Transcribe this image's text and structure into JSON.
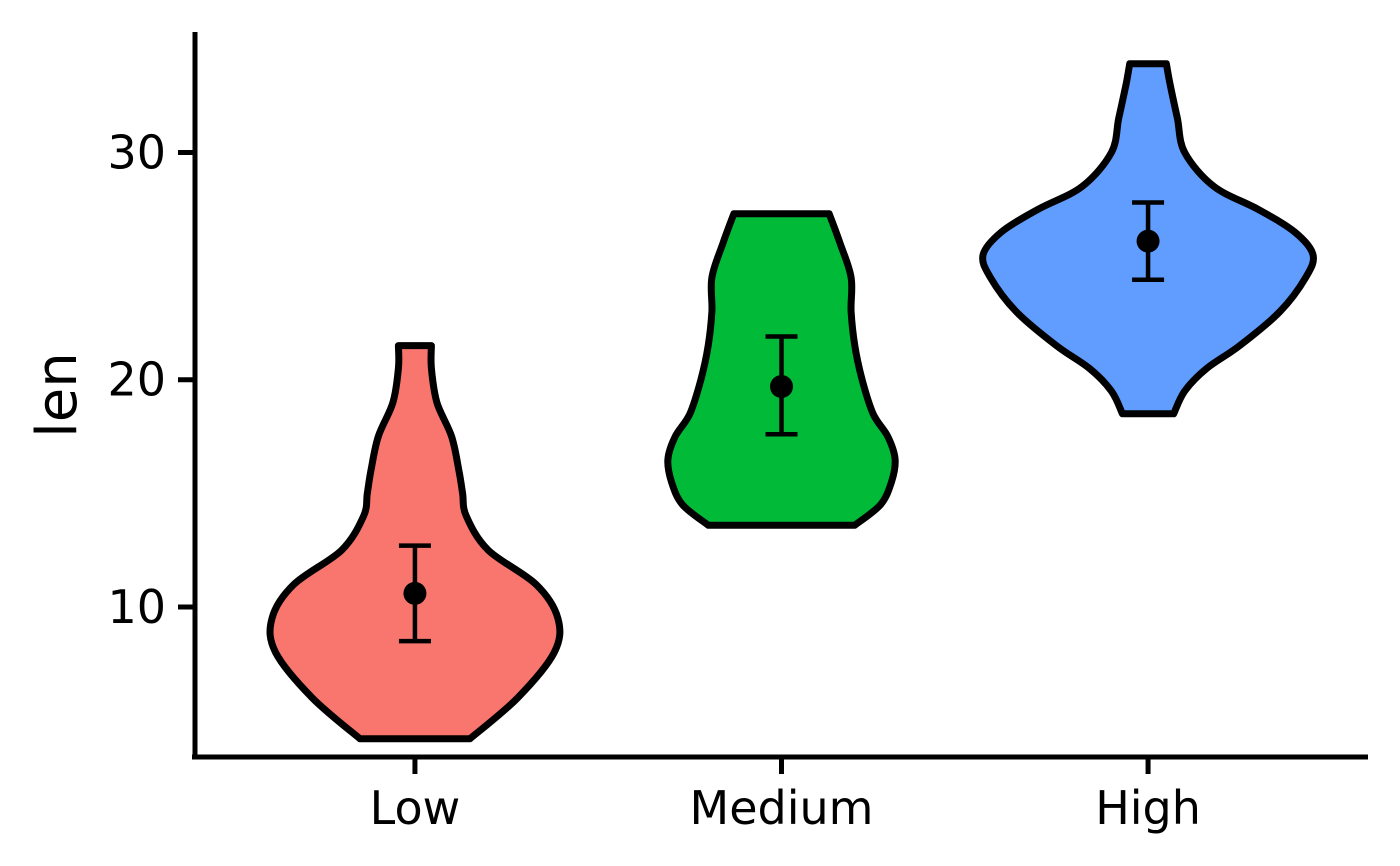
{
  "chart_data": {
    "type": "violin",
    "title": "",
    "xlabel": "",
    "ylabel": "len",
    "categories": [
      "Low",
      "Medium",
      "High"
    ],
    "ylim": [
      3.4,
      35.3
    ],
    "yticks": [
      10,
      20,
      30
    ],
    "grid": false,
    "legend": "none",
    "colors": [
      "#F8766D",
      "#00BA38",
      "#619CFF"
    ],
    "series": [
      {
        "category": "Low",
        "min": 4.2,
        "max": 21.5,
        "mean": 10.6,
        "error_low": 8.5,
        "error_high": 12.7,
        "density_y": [
          4.2,
          6.0,
          8.0,
          9.5,
          11.0,
          12.5,
          14.0,
          15.0,
          16.0,
          17.5,
          19.0,
          20.5,
          21.5
        ],
        "density_width": [
          0.15,
          0.28,
          0.38,
          0.39,
          0.33,
          0.2,
          0.14,
          0.13,
          0.12,
          0.1,
          0.06,
          0.045,
          0.045
        ]
      },
      {
        "category": "Medium",
        "min": 13.6,
        "max": 27.3,
        "mean": 19.7,
        "error_low": 17.6,
        "error_high": 21.9,
        "density_y": [
          13.6,
          14.5,
          15.5,
          16.5,
          17.5,
          18.5,
          20.0,
          21.5,
          23.0,
          24.5,
          26.0,
          27.3
        ],
        "density_width": [
          0.2,
          0.27,
          0.3,
          0.31,
          0.29,
          0.25,
          0.22,
          0.2,
          0.19,
          0.19,
          0.16,
          0.13
        ]
      },
      {
        "category": "High",
        "min": 18.5,
        "max": 33.9,
        "mean": 26.1,
        "error_low": 24.4,
        "error_high": 27.8,
        "density_y": [
          18.5,
          19.5,
          20.5,
          21.5,
          23.0,
          24.5,
          25.5,
          26.5,
          27.5,
          28.5,
          30.0,
          31.5,
          33.0,
          33.9
        ],
        "density_width": [
          0.07,
          0.1,
          0.16,
          0.25,
          0.36,
          0.43,
          0.45,
          0.4,
          0.3,
          0.18,
          0.1,
          0.08,
          0.06,
          0.05
        ]
      }
    ]
  }
}
